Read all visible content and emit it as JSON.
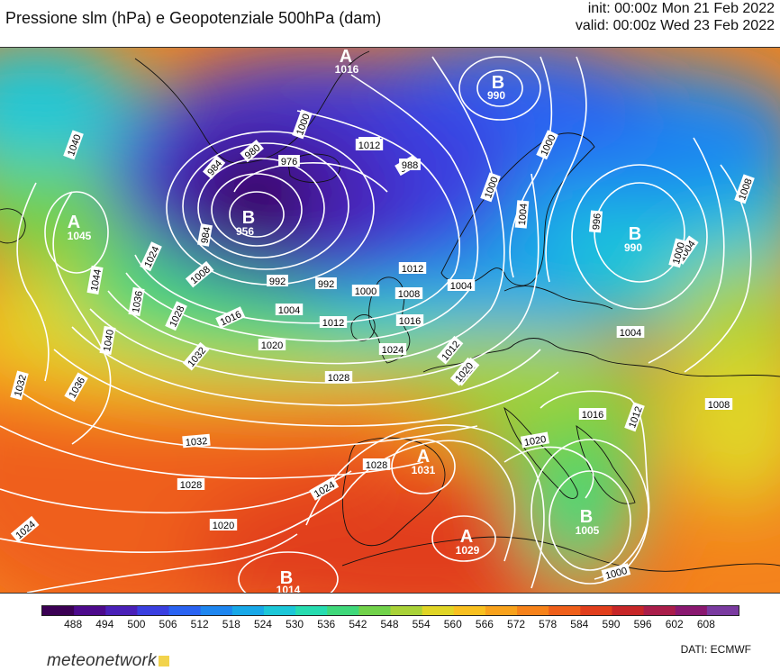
{
  "header": {
    "title": "Pressione slm (hPa) e Geopotenziale 500hPa (dam)",
    "init": "init: 00:00z Mon 21 Feb 2022",
    "valid": "valid: 00:00z Wed 23 Feb 2022"
  },
  "pressure_centers": [
    {
      "type": "A",
      "value": "1016"
    },
    {
      "type": "B",
      "value": "990"
    },
    {
      "type": "B",
      "value": "956"
    },
    {
      "type": "A",
      "value": "1045"
    },
    {
      "type": "B",
      "value": "990"
    },
    {
      "type": "A",
      "value": "1031"
    },
    {
      "type": "A",
      "value": "1029"
    },
    {
      "type": "B",
      "value": "1005"
    },
    {
      "type": "B",
      "value": "1014"
    }
  ],
  "isobar_labels": [
    "1040",
    "1044",
    "1036",
    "1040",
    "1032",
    "1036",
    "1024",
    "1028",
    "1032",
    "1032",
    "1028",
    "1024",
    "1024",
    "1020",
    "1008",
    "1016",
    "1020",
    "1028",
    "1024",
    "1012",
    "1004",
    "988",
    "992",
    "992",
    "1000",
    "1004",
    "1008",
    "1016",
    "1012",
    "1020",
    "1028",
    "1020",
    "1016",
    "1012",
    "984",
    "980",
    "976",
    "984",
    "1000",
    "992",
    "988",
    "1000",
    "1004",
    "1000",
    "1008",
    "1004",
    "1008",
    "996",
    "1000",
    "1004",
    "1008",
    "1000",
    "1012",
    "1012",
    "1020"
  ],
  "colorbar": {
    "labels": [
      "488",
      "494",
      "500",
      "506",
      "512",
      "518",
      "524",
      "530",
      "536",
      "542",
      "548",
      "554",
      "560",
      "566",
      "572",
      "578",
      "584",
      "590",
      "596",
      "602",
      "608"
    ],
    "colors": [
      "#3b0054",
      "#4d0a8c",
      "#4a20b8",
      "#3a3fe0",
      "#2a63f2",
      "#1e86f0",
      "#18a8e8",
      "#1cc7d8",
      "#27dcb0",
      "#3fd87a",
      "#71d24a",
      "#a9d238",
      "#e0d526",
      "#f8c020",
      "#f8a21c",
      "#f6821a",
      "#ef5f1a",
      "#e13e1c",
      "#c72628",
      "#aa1d4a",
      "#8a1870",
      "#7a3aa0"
    ]
  },
  "footer": {
    "brand_main": "meteonetwork",
    "source": "DATI:  ECMWF"
  }
}
